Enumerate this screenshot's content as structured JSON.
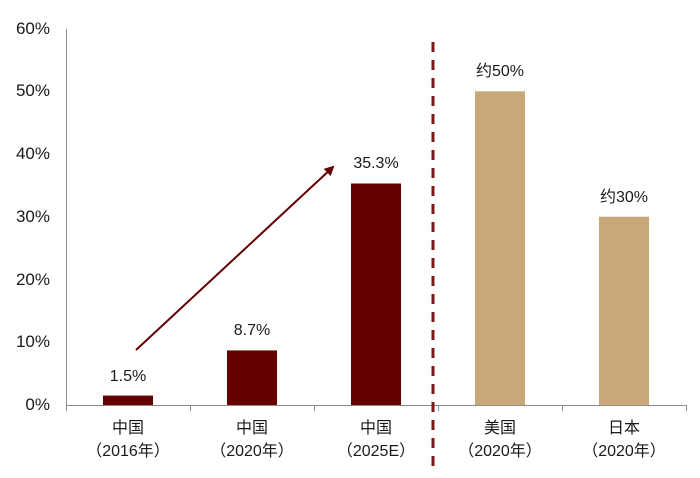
{
  "chart_data": {
    "type": "bar",
    "title": "",
    "xlabel": "",
    "ylabel": "",
    "ylim": [
      0,
      0.6
    ],
    "yticks": [
      "0%",
      "10%",
      "20%",
      "30%",
      "40%",
      "50%",
      "60%"
    ],
    "grid": false,
    "legend": null,
    "categories": [
      {
        "line1": "中国",
        "line2": "（2016年）"
      },
      {
        "line1": "中国",
        "line2": "（2020年）"
      },
      {
        "line1": "中国",
        "line2": "（2025E）"
      },
      {
        "line1": "美国",
        "line2": "（2020年）"
      },
      {
        "line1": "日本",
        "line2": "（2020年）"
      }
    ],
    "values": [
      0.015,
      0.087,
      0.353,
      0.5,
      0.3
    ],
    "value_labels": [
      "1.5%",
      "8.7%",
      "35.3%",
      "约50%",
      "约30%"
    ],
    "bar_colors": [
      "#640000",
      "#640000",
      "#640000",
      "#c9a877",
      "#c9a877"
    ],
    "annotations": [
      {
        "type": "arrow",
        "from_category": 0,
        "to_category": 2,
        "color": "#640000",
        "description": "upward trend arrow from China 2016 to China 2025E"
      },
      {
        "type": "dashed_vertical_line",
        "between_categories": [
          2,
          3
        ],
        "color": "#7a1a1a",
        "description": "separator between China and other countries"
      }
    ]
  },
  "colors": {
    "china": "#640000",
    "other": "#c9a877",
    "axis": "#8c8c8c",
    "separator": "#7a1a1a"
  }
}
